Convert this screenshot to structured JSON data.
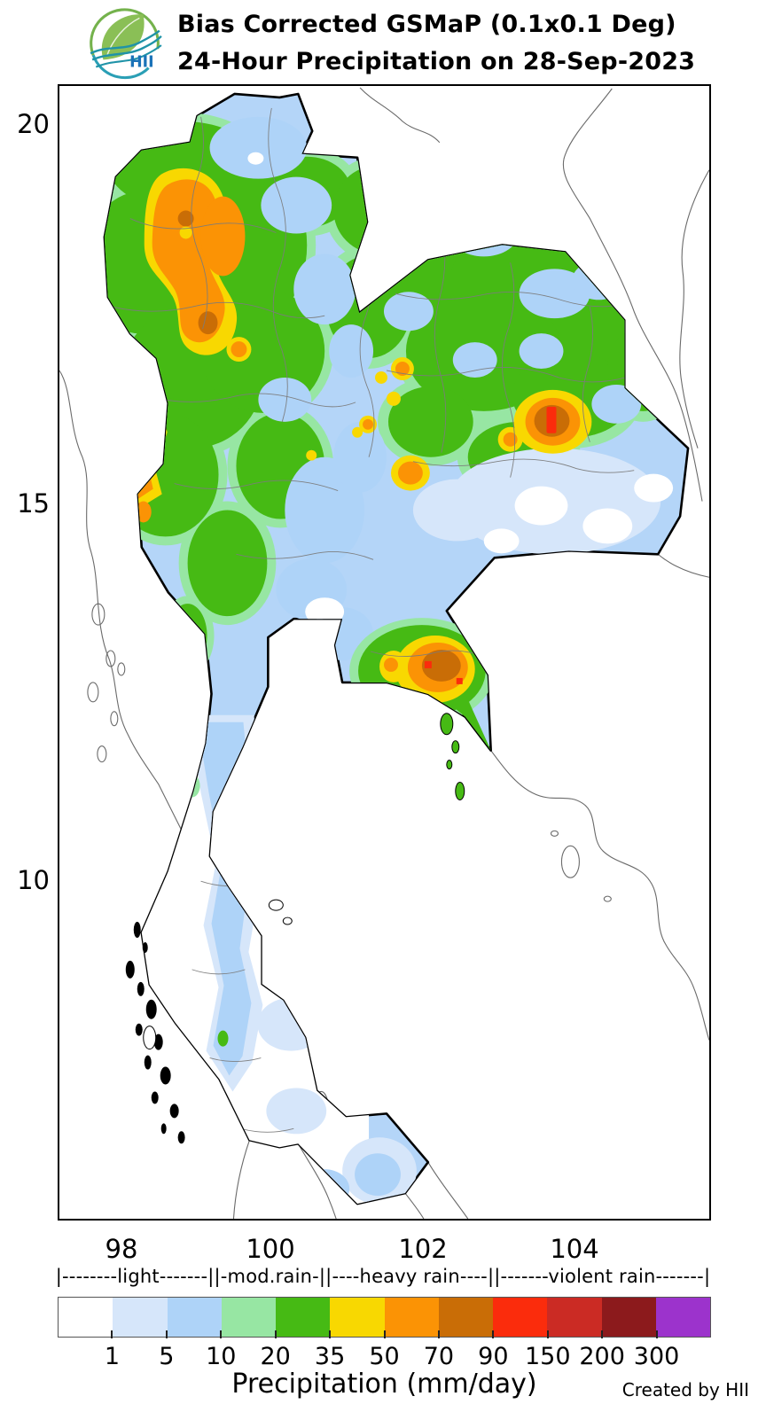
{
  "header": {
    "logo_text": "HII",
    "title_line1": "Bias Corrected GSMaP (0.1x0.1 Deg)",
    "title_line2": "24-Hour Precipitation on 28-Sep-2023"
  },
  "map": {
    "lat_labels": [
      "20",
      "15",
      "10"
    ],
    "lon_labels": [
      "98",
      "100",
      "102",
      "104"
    ]
  },
  "legend": {
    "intensity_line": "|--------light-------||-mod.rain-||----heavy rain----||-------violent rain-------|",
    "scale_ticks": [
      "1",
      "5",
      "10",
      "20",
      "35",
      "50",
      "70",
      "90",
      "150",
      "200",
      "300"
    ],
    "scale_colors": [
      "#ffffff",
      "#d6e6fa",
      "#aed3f8",
      "#97e6a3",
      "#46ba14",
      "#f8d801",
      "#fb9305",
      "#c96d06",
      "#fb2c0c",
      "#cb2b24",
      "#8c1a1c",
      "#9c33cc"
    ],
    "axis_title": "Precipitation (mm/day)",
    "credit": "Created by HII"
  },
  "chart_data": {
    "type": "heatmap",
    "title": "Bias Corrected GSMaP (0.1x0.1 Deg) 24-Hour Precipitation on 28-Sep-2023",
    "date": "28-Sep-2023",
    "grid_resolution": "0.1x0.1 Deg",
    "units": "mm/day",
    "lon_ticks": [
      98,
      100,
      102,
      104
    ],
    "lat_ticks": [
      20,
      15,
      10
    ],
    "color_scale_bounds": [
      1,
      5,
      10,
      20,
      35,
      50,
      70,
      90,
      150,
      200,
      300
    ],
    "color_scale_colors": [
      "#ffffff",
      "#d6e6fa",
      "#aed3f8",
      "#97e6a3",
      "#46ba14",
      "#f8d801",
      "#fb9305",
      "#c96d06",
      "#fb2c0c",
      "#cb2b24",
      "#8c1a1c",
      "#9c33cc"
    ],
    "intensity_classes": [
      "light",
      "mod.rain",
      "heavy rain",
      "violent rain"
    ],
    "regions_summary": [
      {
        "region": "Northwest highlands (Mae Hong Son / Chiang Mai)",
        "precip_mm_day": "50-70 band with 70-90 cores"
      },
      {
        "region": "North and upper Northeast",
        "precip_mm_day": "mostly 20-35 with 1-10 patches"
      },
      {
        "region": "Central Northeast hotspot (~103.7E, 16.0N)",
        "precip_mm_day": "90-150 core inside 50-90 ring"
      },
      {
        "region": "Western border hotspot (~98.1E, 15.0N)",
        "precip_mm_day": "50-90 with 70-90 core"
      },
      {
        "region": "East coast Chanthaburi/Trat (~102.2E, 12.8N)",
        "precip_mm_day": "70-90 core with 90-150 cells"
      },
      {
        "region": "Lower Northeast",
        "precip_mm_day": "0-5 (white to pale blue)"
      },
      {
        "region": "Southern peninsula",
        "precip_mm_day": "mostly below 5; 1-10 along the west coast"
      }
    ]
  }
}
